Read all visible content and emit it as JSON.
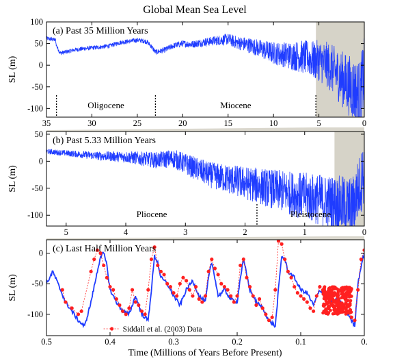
{
  "figure": {
    "title": "Global Mean Sea Level",
    "xlabel": "Time (Millions of Years Before Present)"
  },
  "chart_data": [
    {
      "type": "line",
      "panel": "a",
      "title": "(a)  Past 35 Million Years",
      "ylabel": "SL (m)",
      "xlim": [
        35,
        0
      ],
      "ylim": [
        -120,
        100
      ],
      "x_ticks": [
        "35",
        "30",
        "25",
        "20",
        "15",
        "10",
        "5",
        "0"
      ],
      "y_ticks": [
        "100",
        "50",
        "0",
        "-50",
        "-100"
      ],
      "epochs": [
        {
          "label": "Oligocene",
          "from": 33.9,
          "to": 23.0
        },
        {
          "label": "Miocene",
          "from": 23.0,
          "to": 5.33
        }
      ],
      "boundaries": [
        33.9,
        23.0,
        5.33
      ],
      "highlight_range": [
        5.33,
        0
      ],
      "series": [
        {
          "x": [
            35,
            34.5,
            34,
            33.9,
            33.5,
            33,
            32,
            31,
            30,
            29,
            28,
            27,
            26,
            25,
            24,
            23.5,
            23,
            22,
            21,
            20,
            19,
            18,
            17,
            16,
            15,
            14,
            13,
            12,
            11,
            10,
            9,
            8,
            7,
            6,
            5.5,
            5,
            4.5,
            4,
            3.5,
            3,
            2.5,
            2,
            1.5,
            1,
            0.5,
            0
          ],
          "y": [
            62,
            60,
            58,
            45,
            28,
            30,
            35,
            38,
            40,
            42,
            45,
            52,
            55,
            58,
            55,
            45,
            30,
            35,
            45,
            50,
            48,
            52,
            55,
            58,
            60,
            52,
            48,
            42,
            35,
            28,
            25,
            22,
            20,
            15,
            10,
            12,
            5,
            0,
            -10,
            -20,
            -30,
            -40,
            -50,
            -60,
            -70,
            -20
          ]
        }
      ]
    },
    {
      "type": "line",
      "panel": "b",
      "title": "(b)  Past 5.33 Million Years",
      "ylabel": "SL (m)",
      "xlim": [
        5.33,
        0
      ],
      "ylim": [
        -120,
        55
      ],
      "x_ticks": [
        "5",
        "4",
        "3",
        "2",
        "1",
        "0"
      ],
      "y_ticks": [
        "50",
        "0",
        "-50",
        "-100"
      ],
      "epochs": [
        {
          "label": "Pliocene",
          "from": 5.33,
          "to": 1.8
        },
        {
          "label": "Pleistocene",
          "from": 1.8,
          "to": 0
        }
      ],
      "boundaries": [
        1.8
      ],
      "highlight_range": [
        0.5,
        0
      ],
      "series": [
        {
          "x": [
            5.33,
            5,
            4.5,
            4,
            3.5,
            3.2,
            3,
            2.8,
            2.6,
            2.4,
            2.2,
            2,
            1.8,
            1.6,
            1.4,
            1.2,
            1,
            0.8,
            0.6,
            0.4,
            0.2,
            0
          ],
          "y": [
            18,
            15,
            10,
            8,
            2,
            5,
            -5,
            -15,
            -25,
            -30,
            -35,
            -40,
            -45,
            -50,
            -55,
            -60,
            -65,
            -70,
            -75,
            -80,
            -85,
            -20
          ]
        }
      ]
    },
    {
      "type": "line",
      "panel": "c",
      "title": "(c)  Last Half Million Years",
      "ylabel": "SL (m)",
      "xlim": [
        0.5,
        0
      ],
      "ylim": [
        -135,
        22
      ],
      "x_ticks": [
        "0.5",
        "0.4",
        "0.3",
        "0.2",
        "0.1",
        "0."
      ],
      "y_ticks": [
        "0",
        "-50",
        "-100"
      ],
      "legend": "Siddall et al. (2003) Data",
      "series": [
        {
          "x": [
            0.5,
            0.49,
            0.48,
            0.47,
            0.46,
            0.45,
            0.44,
            0.43,
            0.42,
            0.415,
            0.41,
            0.405,
            0.4,
            0.39,
            0.38,
            0.37,
            0.36,
            0.35,
            0.34,
            0.335,
            0.33,
            0.325,
            0.32,
            0.31,
            0.3,
            0.29,
            0.28,
            0.27,
            0.26,
            0.25,
            0.245,
            0.24,
            0.235,
            0.23,
            0.22,
            0.21,
            0.2,
            0.195,
            0.19,
            0.18,
            0.17,
            0.16,
            0.15,
            0.14,
            0.135,
            0.13,
            0.125,
            0.12,
            0.11,
            0.1,
            0.09,
            0.08,
            0.07,
            0.06,
            0.05,
            0.04,
            0.03,
            0.02,
            0.015,
            0.01,
            0.005,
            0
          ],
          "y": [
            -50,
            -30,
            -55,
            -80,
            -95,
            -110,
            -120,
            -80,
            -30,
            -5,
            0,
            -20,
            -60,
            -80,
            -95,
            -100,
            -70,
            -100,
            -110,
            -60,
            -5,
            -15,
            -40,
            -50,
            -70,
            -85,
            -60,
            -45,
            -70,
            -80,
            -40,
            -15,
            -40,
            -70,
            -60,
            -75,
            -80,
            -40,
            -10,
            -60,
            -80,
            -90,
            -110,
            -120,
            -60,
            -5,
            -10,
            -30,
            -40,
            -60,
            -65,
            -85,
            -60,
            -70,
            -80,
            -75,
            -90,
            -110,
            -120,
            -50,
            -20,
            0
          ]
        },
        {
          "name": "Siddall et al. (2003) Data",
          "x": [
            0.475,
            0.47,
            0.46,
            0.45,
            0.445,
            0.43,
            0.425,
            0.42,
            0.415,
            0.41,
            0.405,
            0.4,
            0.395,
            0.39,
            0.385,
            0.38,
            0.375,
            0.37,
            0.365,
            0.36,
            0.355,
            0.35,
            0.345,
            0.34,
            0.335,
            0.33,
            0.325,
            0.32,
            0.315,
            0.31,
            0.305,
            0.3,
            0.295,
            0.29,
            0.285,
            0.28,
            0.275,
            0.27,
            0.265,
            0.26,
            0.255,
            0.25,
            0.245,
            0.24,
            0.235,
            0.23,
            0.225,
            0.22,
            0.215,
            0.21,
            0.205,
            0.2,
            0.195,
            0.19,
            0.185,
            0.18,
            0.175,
            0.17,
            0.165,
            0.16,
            0.155,
            0.15,
            0.145,
            0.14,
            0.135,
            0.13,
            0.125,
            0.12,
            0.115,
            0.11,
            0.105,
            0.1,
            0.095,
            0.09,
            0.085,
            0.08,
            0.075,
            0.07,
            0.065,
            0.06,
            0.055,
            0.05,
            0.045,
            0.04,
            0.035,
            0.03,
            0.025,
            0.02,
            0.015,
            0.01,
            0.005,
            0
          ],
          "y": [
            -60,
            -80,
            -90,
            -100,
            -95,
            -30,
            -10,
            5,
            0,
            -20,
            -40,
            -55,
            -60,
            -75,
            -85,
            -95,
            -100,
            -90,
            -60,
            -80,
            -85,
            -95,
            -100,
            -60,
            -10,
            10,
            -20,
            -30,
            -35,
            -50,
            -55,
            -65,
            -70,
            -50,
            -40,
            -45,
            -60,
            -70,
            -55,
            -75,
            -80,
            -70,
            -30,
            -10,
            -25,
            -35,
            -50,
            -55,
            -60,
            -70,
            -80,
            -70,
            -20,
            -10,
            -40,
            -55,
            -70,
            -85,
            -75,
            -90,
            -100,
            -110,
            -105,
            -60,
            20,
            15,
            -10,
            -30,
            -40,
            -55,
            -65,
            -70,
            -75,
            -80,
            -90,
            -95,
            -70,
            -55,
            -60,
            -65,
            -70,
            -75,
            -80,
            -75,
            -85,
            -90,
            -95,
            -105,
            -110,
            -60,
            -10,
            5
          ]
        }
      ]
    }
  ]
}
